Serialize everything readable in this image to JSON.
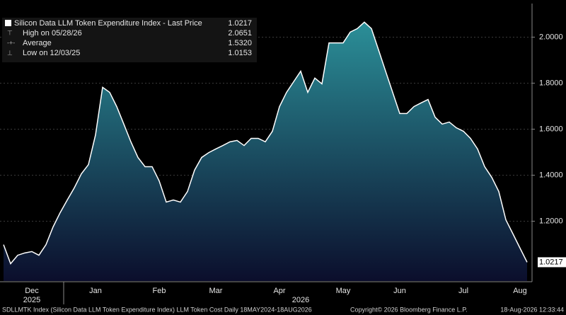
{
  "chart_data": {
    "type": "area",
    "title": "Silicon Data LLM Token Expenditure Index - Last Price",
    "last_price_label": "1.0217",
    "legend_rows": [
      {
        "label": "High on 05/28/26",
        "value": "2.0651"
      },
      {
        "label": "Average",
        "value": "1.5320"
      },
      {
        "label": "Low on 12/03/25",
        "value": "1.0153"
      }
    ],
    "categories": [
      null,
      null,
      null,
      null,
      "Dec",
      null,
      null,
      null,
      null,
      null,
      null,
      null,
      null,
      "Jan",
      null,
      null,
      null,
      null,
      null,
      null,
      null,
      null,
      "Feb",
      null,
      null,
      null,
      null,
      null,
      null,
      null,
      "Mar",
      null,
      null,
      null,
      null,
      null,
      null,
      null,
      null,
      "Apr",
      null,
      null,
      null,
      null,
      null,
      null,
      null,
      null,
      "May",
      null,
      null,
      null,
      null,
      null,
      null,
      null,
      "Jun",
      null,
      null,
      null,
      null,
      null,
      null,
      null,
      null,
      "Jul",
      null,
      null,
      null,
      null,
      null,
      null,
      null,
      "Aug",
      null
    ],
    "years": [
      null,
      null,
      null,
      null,
      "2025",
      null,
      null,
      null,
      null,
      null,
      null,
      null,
      null,
      null,
      null,
      null,
      null,
      null,
      null,
      null,
      null,
      null,
      null,
      null,
      null,
      null,
      null,
      null,
      null,
      null,
      null,
      null,
      null,
      null,
      null,
      null,
      null,
      null,
      null,
      null,
      null,
      null,
      "2026",
      null,
      null,
      null,
      null,
      null,
      null,
      null,
      null,
      null,
      null,
      null,
      null,
      null,
      null,
      null,
      null,
      null,
      null,
      null,
      null,
      null,
      null,
      null,
      null,
      null,
      null,
      null,
      null,
      null,
      null,
      null,
      null
    ],
    "values": [
      1.098,
      1.0153,
      1.052,
      1.062,
      1.068,
      1.052,
      1.098,
      1.175,
      1.237,
      1.292,
      1.345,
      1.406,
      1.446,
      1.575,
      1.782,
      1.76,
      1.698,
      1.622,
      1.545,
      1.477,
      1.437,
      1.437,
      1.375,
      1.283,
      1.292,
      1.283,
      1.329,
      1.422,
      1.477,
      1.498,
      1.514,
      1.529,
      1.545,
      1.551,
      1.529,
      1.56,
      1.56,
      1.545,
      1.591,
      1.698,
      1.76,
      1.806,
      1.852,
      1.76,
      1.822,
      1.797,
      1.975,
      1.975,
      1.975,
      2.022,
      2.037,
      2.0651,
      2.037,
      1.945,
      1.852,
      1.76,
      1.668,
      1.668,
      1.698,
      1.714,
      1.729,
      1.652,
      1.622,
      1.631,
      1.606,
      1.591,
      1.56,
      1.514,
      1.437,
      1.391,
      1.329,
      1.206,
      1.145,
      1.083,
      1.0217
    ],
    "line_color": "#ffffff",
    "fill_top_color": "#2b8f98",
    "fill_bottom_color": "#0b0e2c",
    "ylim": [
      0.94,
      2.146
    ],
    "yticks": [
      {
        "value": 1.2,
        "label": "1.2000"
      },
      {
        "value": 1.4,
        "label": "1.4000"
      },
      {
        "value": 1.6,
        "label": "1.6000"
      },
      {
        "value": 1.8,
        "label": "1.8000"
      },
      {
        "value": 2,
        "label": "2.0000"
      }
    ],
    "grid": true,
    "footer_left": "SDLLMTK Index (Silicon Data LLM Token Expenditure Index) LLM Token Cost Daily 18MAY2024-18AUG2026",
    "footer_center": "Copyright© 2026 Bloomberg Finance L.P.",
    "footer_right": "18-Aug-2026 12:33:44"
  }
}
